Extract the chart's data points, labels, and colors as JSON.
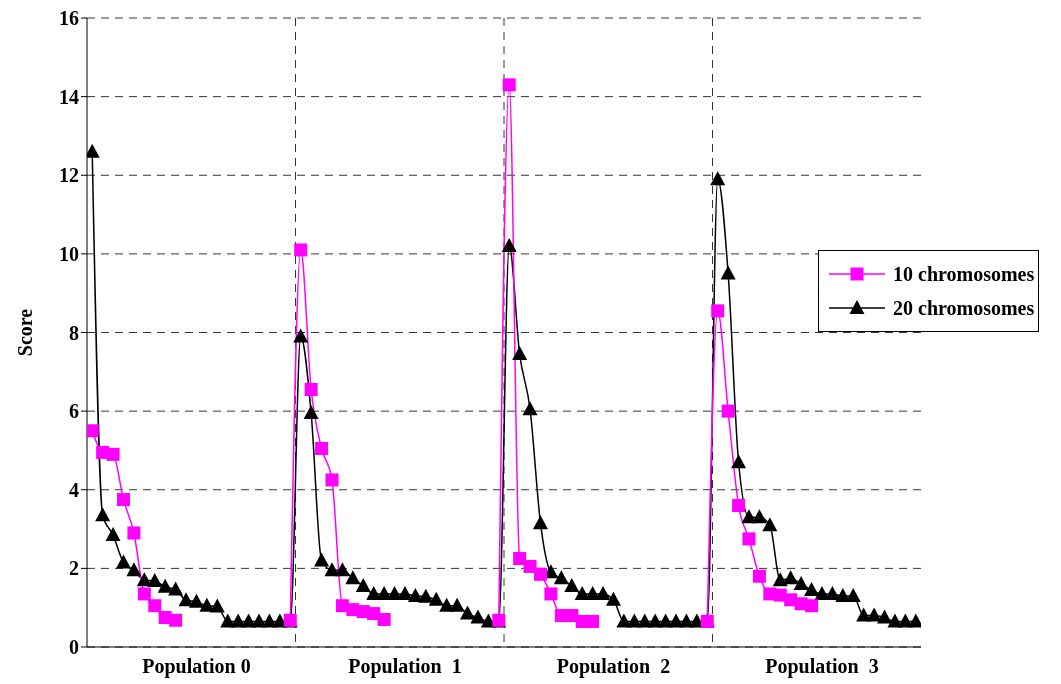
{
  "chart_data": {
    "type": "line",
    "ylabel": "Score",
    "categories": [
      null,
      null,
      null,
      null,
      null,
      null,
      null,
      null,
      null,
      null,
      "Population 0",
      null,
      null,
      null,
      null,
      null,
      null,
      null,
      null,
      null,
      null,
      null,
      null,
      null,
      null,
      null,
      null,
      null,
      null,
      null,
      "Population  1",
      null,
      null,
      null,
      null,
      null,
      null,
      null,
      null,
      null,
      null,
      null,
      null,
      null,
      null,
      null,
      null,
      null,
      null,
      null,
      "Population  2",
      null,
      null,
      null,
      null,
      null,
      null,
      null,
      null,
      null,
      null,
      null,
      null,
      null,
      null,
      null,
      null,
      null,
      null,
      null,
      "Population  3",
      null,
      null,
      null,
      null,
      null,
      null,
      null,
      null,
      null
    ],
    "series": [
      {
        "name": "10 chromosomes",
        "color": "#ff00ff",
        "marker": "square",
        "values": [
          5.5,
          4.95,
          4.9,
          3.75,
          2.9,
          1.35,
          1.05,
          0.75,
          0.68,
          null,
          null,
          null,
          null,
          null,
          null,
          null,
          null,
          null,
          null,
          0.68,
          10.1,
          6.55,
          5.05,
          4.25,
          1.05,
          0.95,
          0.9,
          0.85,
          0.7,
          null,
          null,
          null,
          null,
          null,
          null,
          null,
          null,
          null,
          null,
          0.68,
          14.3,
          2.25,
          2.05,
          1.85,
          1.35,
          0.8,
          0.8,
          0.65,
          0.65,
          null,
          null,
          null,
          null,
          null,
          null,
          null,
          null,
          null,
          null,
          0.65,
          8.55,
          6,
          3.6,
          2.75,
          1.8,
          1.35,
          1.32,
          1.2,
          1.1,
          1.05,
          null,
          null,
          null,
          null,
          null,
          null,
          null,
          null,
          null,
          null
        ]
      },
      {
        "name": "20 chromosomes",
        "color": "#000000",
        "marker": "triangle",
        "values": [
          12.6,
          3.35,
          2.85,
          2.15,
          1.95,
          1.7,
          1.68,
          1.53,
          1.46,
          1.19,
          1.15,
          1.05,
          1.03,
          0.65,
          0.65,
          0.65,
          0.65,
          0.65,
          0.65,
          0.65,
          7.9,
          5.95,
          2.2,
          1.95,
          1.95,
          1.75,
          1.55,
          1.35,
          1.35,
          1.35,
          1.35,
          1.3,
          1.28,
          1.2,
          1.05,
          1.05,
          0.85,
          0.75,
          0.65,
          0.65,
          10.2,
          7.45,
          6.05,
          3.15,
          1.9,
          1.75,
          1.55,
          1.35,
          1.35,
          1.35,
          1.2,
          0.65,
          0.65,
          0.65,
          0.65,
          0.65,
          0.65,
          0.65,
          0.65,
          0.65,
          11.9,
          9.5,
          4.7,
          3.3,
          3.3,
          3.1,
          1.7,
          1.75,
          1.6,
          1.45,
          1.35,
          1.35,
          1.3,
          1.3,
          0.8,
          0.8,
          0.75,
          0.65,
          0.65,
          0.65
        ]
      }
    ],
    "ylim": [
      0,
      16
    ],
    "yticks": [
      0,
      2,
      4,
      6,
      8,
      10,
      12,
      14,
      16
    ],
    "grid": true,
    "legend": "right",
    "line_style": "solid"
  }
}
